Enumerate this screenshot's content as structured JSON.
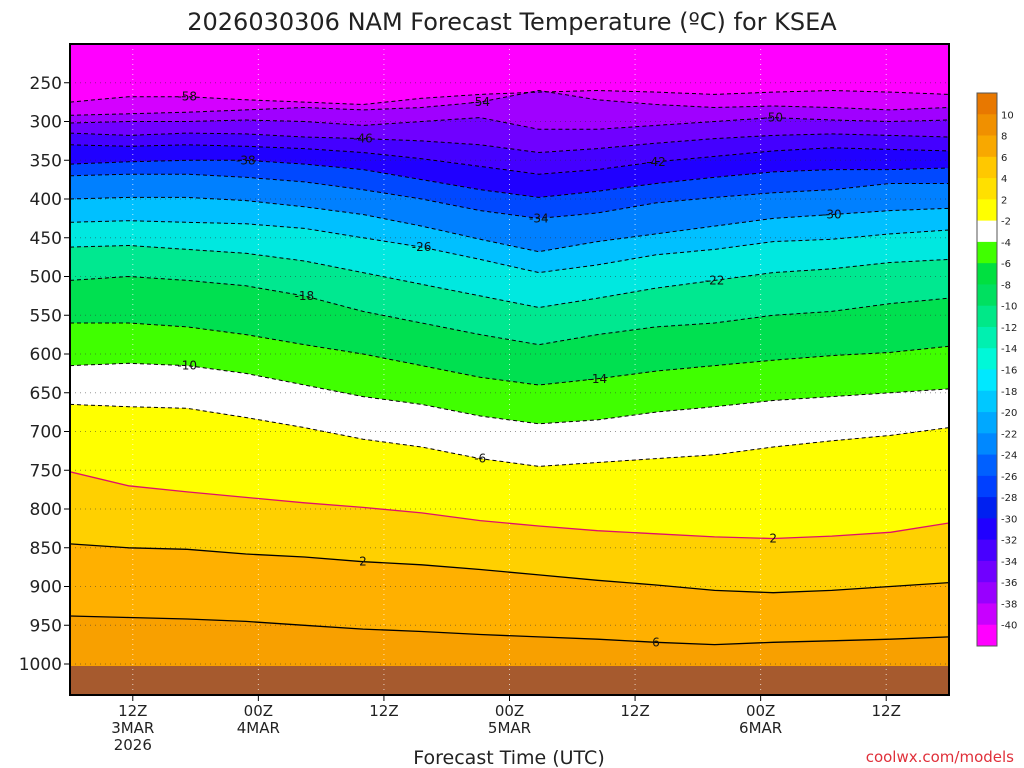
{
  "chart_data": {
    "type": "heatmap",
    "title": "2026030306 NAM Forecast Temperature (ºC) for KSEA",
    "xlabel": "Forecast Time (UTC)",
    "ylabel": "",
    "credit": "coolwx.com/models",
    "y_axis": {
      "reversed": true,
      "range": [
        200,
        1040
      ],
      "ticks": [
        250,
        300,
        350,
        400,
        450,
        500,
        550,
        600,
        650,
        700,
        750,
        800,
        850,
        900,
        950,
        1000
      ],
      "tick_labels": [
        "250",
        "300",
        "350",
        "400",
        "450",
        "500",
        "550",
        "600",
        "650",
        "700",
        "750",
        "800",
        "850",
        "900",
        "950",
        "1000"
      ]
    },
    "x_axis": {
      "range": [
        0,
        84
      ],
      "ticks": [
        6,
        18,
        30,
        42,
        54,
        66,
        78
      ],
      "tick_labels": [
        {
          "line1": "12Z",
          "line2": "3MAR",
          "line3": "2026"
        },
        {
          "line1": "00Z",
          "line2": "4MAR",
          "line3": ""
        },
        {
          "line1": "12Z",
          "line2": "",
          "line3": ""
        },
        {
          "line1": "00Z",
          "line2": "5MAR",
          "line3": ""
        },
        {
          "line1": "12Z",
          "line2": "",
          "line3": ""
        },
        {
          "line1": "00Z",
          "line2": "6MAR",
          "line3": ""
        },
        {
          "line1": "12Z",
          "line2": "",
          "line3": ""
        }
      ]
    },
    "colorbar": {
      "labels": [
        "10",
        "8",
        "6",
        "4",
        "2",
        "-2",
        "-4",
        "-6",
        "-8",
        "-10",
        "-12",
        "-14",
        "-16",
        "-18",
        "-20",
        "-22",
        "-24",
        "-26",
        "-28",
        "-30",
        "-32",
        "-34",
        "-36",
        "-38",
        "-40"
      ],
      "colors": [
        "#e87800",
        "#f09000",
        "#f8a800",
        "#ffc800",
        "#ffe000",
        "#ffff00",
        "#ffffff",
        "#40ff00",
        "#00e040",
        "#00e060",
        "#00e888",
        "#00f0b0",
        "#00f8d8",
        "#00e8ff",
        "#00c8ff",
        "#00a8ff",
        "#0088ff",
        "#0060ff",
        "#0040ff",
        "#0020f0",
        "#2000ff",
        "#4800ff",
        "#7000ff",
        "#9800ff",
        "#c800ff",
        "#ff00ff"
      ]
    },
    "contour_lines": [
      {
        "label": "-58",
        "pressure": [
          275,
          268,
          268,
          272,
          275,
          278,
          270,
          265,
          262,
          260,
          262,
          265,
          262,
          260,
          262,
          265
        ]
      },
      {
        "label": "-54",
        "pressure": [
          292,
          290,
          288,
          285,
          282,
          285,
          282,
          275,
          260,
          272,
          278,
          282,
          280,
          282,
          285,
          282
        ]
      },
      {
        "label": "-50",
        "pressure": [
          302,
          300,
          300,
          298,
          300,
          305,
          300,
          295,
          310,
          310,
          305,
          300,
          295,
          298,
          300,
          298
        ]
      },
      {
        "label": "-46",
        "pressure": [
          315,
          318,
          315,
          316,
          320,
          322,
          325,
          330,
          340,
          335,
          328,
          322,
          318,
          316,
          318,
          320
        ]
      },
      {
        "label": "-42",
        "pressure": [
          330,
          332,
          330,
          332,
          335,
          340,
          348,
          358,
          368,
          362,
          352,
          345,
          338,
          334,
          336,
          338
        ]
      },
      {
        "label": "-38",
        "pressure": [
          355,
          352,
          350,
          350,
          355,
          362,
          375,
          388,
          398,
          390,
          380,
          372,
          365,
          362,
          362,
          360
        ]
      },
      {
        "label": "-34",
        "pressure": [
          370,
          368,
          368,
          372,
          378,
          388,
          400,
          415,
          425,
          418,
          405,
          398,
          392,
          388,
          380,
          380
        ]
      },
      {
        "label": "-30",
        "pressure": [
          400,
          398,
          398,
          402,
          410,
          420,
          435,
          452,
          468,
          455,
          445,
          435,
          425,
          420,
          415,
          412
        ]
      },
      {
        "label": "-26",
        "pressure": [
          430,
          428,
          430,
          432,
          438,
          450,
          462,
          478,
          495,
          485,
          472,
          465,
          455,
          452,
          445,
          440
        ]
      },
      {
        "label": "-22",
        "pressure": [
          462,
          460,
          465,
          470,
          480,
          495,
          510,
          525,
          540,
          528,
          515,
          505,
          495,
          490,
          482,
          478
        ]
      },
      {
        "label": "-18",
        "pressure": [
          505,
          500,
          505,
          512,
          525,
          545,
          560,
          575,
          588,
          575,
          565,
          560,
          550,
          545,
          535,
          528
        ]
      },
      {
        "label": "-14",
        "pressure": [
          560,
          560,
          565,
          575,
          588,
          600,
          615,
          630,
          640,
          632,
          622,
          615,
          608,
          602,
          598,
          590
        ]
      },
      {
        "label": "-10",
        "pressure": [
          615,
          612,
          615,
          625,
          640,
          655,
          665,
          680,
          690,
          685,
          675,
          668,
          660,
          655,
          650,
          645
        ]
      },
      {
        "label": "-6",
        "pressure": [
          665,
          668,
          670,
          682,
          695,
          710,
          720,
          735,
          745,
          740,
          735,
          730,
          720,
          712,
          705,
          695
        ]
      },
      {
        "label": "2",
        "pressure": [
          752,
          770,
          778,
          785,
          792,
          798,
          805,
          815,
          822,
          828,
          832,
          836,
          838,
          835,
          830,
          818
        ]
      },
      {
        "label": "2",
        "pressure": [
          845,
          850,
          852,
          858,
          862,
          868,
          872,
          878,
          885,
          892,
          898,
          905,
          908,
          905,
          900,
          895
        ]
      },
      {
        "label": "6",
        "pressure": [
          938,
          940,
          942,
          945,
          950,
          955,
          958,
          962,
          965,
          968,
          972,
          975,
          972,
          970,
          968,
          965
        ]
      }
    ]
  }
}
